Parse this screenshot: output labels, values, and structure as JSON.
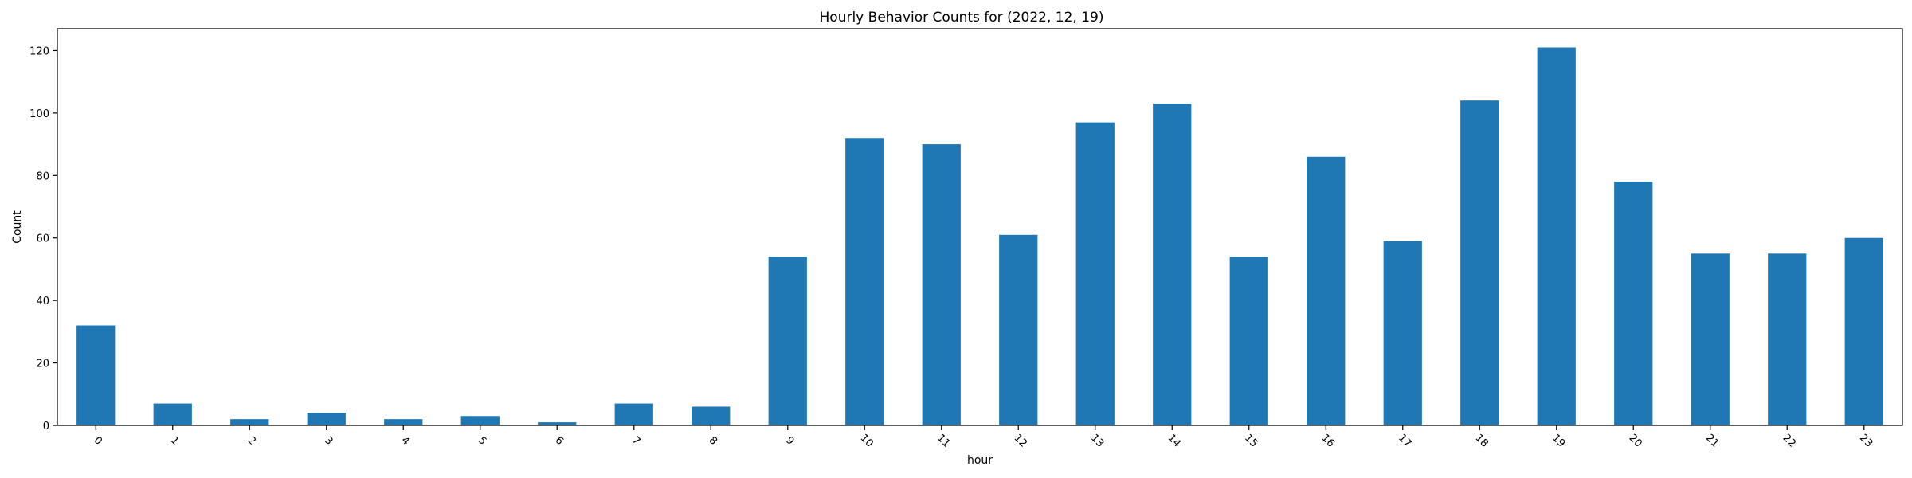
{
  "chart_data": {
    "type": "bar",
    "title": "Hourly Behavior Counts for (2022, 12, 19)",
    "xlabel": "hour",
    "ylabel": "Count",
    "categories": [
      "0",
      "1",
      "2",
      "3",
      "4",
      "5",
      "6",
      "7",
      "8",
      "9",
      "10",
      "11",
      "12",
      "13",
      "14",
      "15",
      "16",
      "17",
      "18",
      "19",
      "20",
      "21",
      "22",
      "23"
    ],
    "values": [
      32,
      7,
      2,
      4,
      2,
      3,
      1,
      7,
      6,
      54,
      92,
      90,
      61,
      97,
      103,
      54,
      86,
      59,
      104,
      121,
      78,
      55,
      55,
      60
    ],
    "ylim": [
      0,
      127
    ],
    "yticks": [
      0,
      20,
      40,
      60,
      80,
      100,
      120
    ],
    "grid": false,
    "legend": "none",
    "bar_color": "#1f77b4"
  }
}
